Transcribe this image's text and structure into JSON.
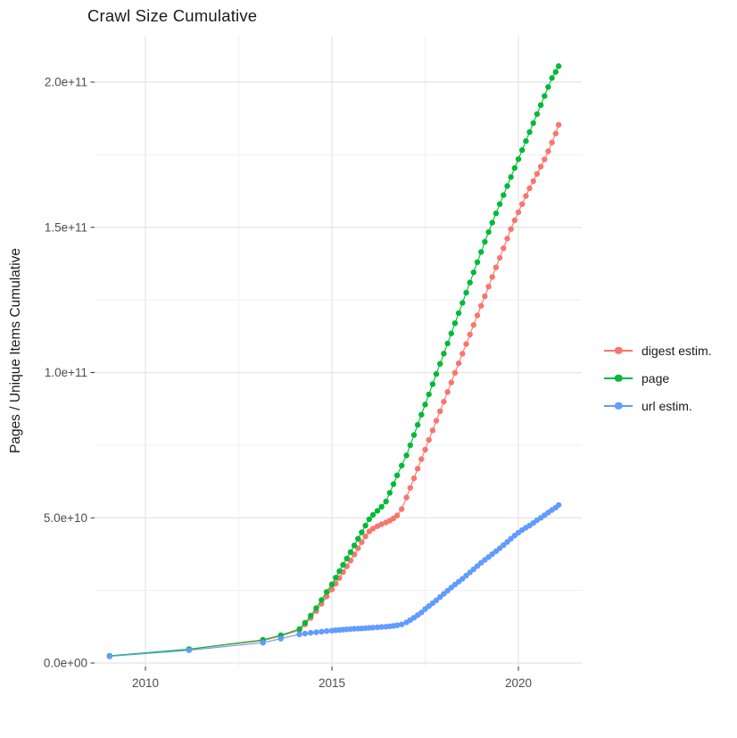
{
  "title": "Crawl Size Cumulative",
  "axes": {
    "y_label": "Pages / Unique Items Cumulative",
    "x_label": "",
    "y_tick_labels": [
      "0.0e+00",
      "5.0e+10",
      "1.0e+11",
      "1.5e+11",
      "2.0e+11"
    ],
    "x_tick_labels": [
      "2010",
      "2015",
      "2020"
    ]
  },
  "legend": {
    "position": "right",
    "items": [
      {
        "id": "digest-estim",
        "label": "digest estim.",
        "color": "#F8766D"
      },
      {
        "id": "page",
        "label": "page",
        "color": "#00BA38"
      },
      {
        "id": "url-estim",
        "label": "url estim.",
        "color": "#619CFF"
      }
    ]
  },
  "colors": {
    "background": "#ffffff",
    "major_gridline": "#e4e4e4",
    "minor_gridline": "#efefef",
    "tick_mark": "#333333",
    "tick_label": "#4d4d4d",
    "title_text": "#1a1a1a",
    "series_digest": "#F8766D",
    "series_page": "#00BA38",
    "series_url": "#619CFF"
  },
  "chart_data": {
    "type": "line",
    "title": "Crawl Size Cumulative",
    "xlabel": "",
    "ylabel": "Pages / Unique Items Cumulative",
    "x_unit": "year (decimal)",
    "value_unit": "items, stored as multiples of 1e9 (value_e9 * 1e9 = plotted value)",
    "xlim": [
      2008.6,
      2021.7
    ],
    "ylim_e9": [
      0,
      217
    ],
    "grid": true,
    "legend_position": "right-middle",
    "x_ticks": [
      {
        "year": 2010,
        "label": "2010"
      },
      {
        "year": 2015,
        "label": "2015"
      },
      {
        "year": 2020,
        "label": "2020"
      }
    ],
    "y_ticks": [
      {
        "value_e9": 0,
        "label": "0.0e+00"
      },
      {
        "value_e9": 50,
        "label": "5.0e+10"
      },
      {
        "value_e9": 100,
        "label": "1.0e+11"
      },
      {
        "value_e9": 150,
        "label": "1.5e+11"
      },
      {
        "value_e9": 200,
        "label": "2.0e+11"
      }
    ],
    "x_minor_years": [
      2012.5,
      2017.5
    ],
    "y_minor_e9": [
      25,
      75,
      125,
      175
    ],
    "series": [
      {
        "id": "digest-estim",
        "name": "digest estim.",
        "color": "#F8766D",
        "points": [
          [
            2009.04,
            2.4
          ],
          [
            2011.17,
            4.7
          ],
          [
            2013.15,
            7.7
          ],
          [
            2013.63,
            9.3
          ],
          [
            2014.13,
            11.3
          ],
          [
            2014.28,
            13.3
          ],
          [
            2014.43,
            15.5
          ],
          [
            2014.58,
            17.9
          ],
          [
            2014.72,
            20.4
          ],
          [
            2014.86,
            22.9
          ],
          [
            2015.0,
            25.3
          ],
          [
            2015.1,
            27.3
          ],
          [
            2015.2,
            29.3
          ],
          [
            2015.3,
            31.3
          ],
          [
            2015.4,
            33.3
          ],
          [
            2015.5,
            35.3
          ],
          [
            2015.6,
            37.4
          ],
          [
            2015.7,
            39.5
          ],
          [
            2015.8,
            41.6
          ],
          [
            2015.9,
            43.6
          ],
          [
            2016.0,
            45.3
          ],
          [
            2016.1,
            46.3
          ],
          [
            2016.22,
            47.1
          ],
          [
            2016.33,
            47.8
          ],
          [
            2016.45,
            48.4
          ],
          [
            2016.55,
            49.0
          ],
          [
            2016.65,
            49.8
          ],
          [
            2016.75,
            50.8
          ],
          [
            2016.87,
            53.0
          ],
          [
            2017.0,
            57.0
          ],
          [
            2017.1,
            60.3
          ],
          [
            2017.2,
            63.6
          ],
          [
            2017.3,
            66.9
          ],
          [
            2017.4,
            70.2
          ],
          [
            2017.5,
            73.5
          ],
          [
            2017.6,
            76.8
          ],
          [
            2017.7,
            80.1
          ],
          [
            2017.8,
            83.4
          ],
          [
            2017.9,
            86.7
          ],
          [
            2018.0,
            90.0
          ],
          [
            2018.1,
            93.3
          ],
          [
            2018.2,
            96.6
          ],
          [
            2018.3,
            99.9
          ],
          [
            2018.4,
            103.2
          ],
          [
            2018.5,
            106.5
          ],
          [
            2018.6,
            109.8
          ],
          [
            2018.7,
            113.1
          ],
          [
            2018.8,
            116.4
          ],
          [
            2018.9,
            119.7
          ],
          [
            2019.0,
            123.0
          ],
          [
            2019.1,
            126.3
          ],
          [
            2019.2,
            129.6
          ],
          [
            2019.3,
            132.9
          ],
          [
            2019.4,
            136.2
          ],
          [
            2019.5,
            139.5
          ],
          [
            2019.6,
            142.8
          ],
          [
            2019.7,
            146.1
          ],
          [
            2019.8,
            149.4
          ],
          [
            2019.9,
            152.4
          ],
          [
            2020.0,
            155.2
          ],
          [
            2020.1,
            158.0
          ],
          [
            2020.2,
            160.8
          ],
          [
            2020.3,
            163.4
          ],
          [
            2020.4,
            165.9
          ],
          [
            2020.5,
            168.4
          ],
          [
            2020.6,
            170.9
          ],
          [
            2020.7,
            173.4
          ],
          [
            2020.8,
            176.2
          ],
          [
            2020.9,
            179.2
          ],
          [
            2021.0,
            182.3
          ],
          [
            2021.08,
            185.3
          ]
        ]
      },
      {
        "id": "page",
        "name": "page",
        "color": "#00BA38",
        "points": [
          [
            2009.04,
            2.5
          ],
          [
            2011.17,
            4.8
          ],
          [
            2013.15,
            8.0
          ],
          [
            2013.63,
            9.6
          ],
          [
            2014.13,
            11.7
          ],
          [
            2014.28,
            13.9
          ],
          [
            2014.43,
            16.3
          ],
          [
            2014.58,
            18.9
          ],
          [
            2014.72,
            21.7
          ],
          [
            2014.86,
            24.5
          ],
          [
            2015.0,
            27.1
          ],
          [
            2015.1,
            29.4
          ],
          [
            2015.2,
            31.6
          ],
          [
            2015.3,
            33.8
          ],
          [
            2015.4,
            36.0
          ],
          [
            2015.5,
            38.2
          ],
          [
            2015.6,
            40.5
          ],
          [
            2015.7,
            42.8
          ],
          [
            2015.8,
            45.0
          ],
          [
            2015.9,
            47.3
          ],
          [
            2016.0,
            49.5
          ],
          [
            2016.1,
            51.0
          ],
          [
            2016.22,
            52.4
          ],
          [
            2016.33,
            53.8
          ],
          [
            2016.45,
            55.6
          ],
          [
            2016.55,
            58.6
          ],
          [
            2016.65,
            61.6
          ],
          [
            2016.75,
            64.6
          ],
          [
            2016.87,
            68.0
          ],
          [
            2017.0,
            71.5
          ],
          [
            2017.1,
            75.0
          ],
          [
            2017.2,
            78.5
          ],
          [
            2017.3,
            82.0
          ],
          [
            2017.4,
            85.5
          ],
          [
            2017.5,
            89.0
          ],
          [
            2017.6,
            92.5
          ],
          [
            2017.7,
            96.0
          ],
          [
            2017.8,
            99.5
          ],
          [
            2017.9,
            103.0
          ],
          [
            2018.0,
            106.5
          ],
          [
            2018.1,
            110.0
          ],
          [
            2018.2,
            113.5
          ],
          [
            2018.3,
            117.0
          ],
          [
            2018.4,
            120.5
          ],
          [
            2018.5,
            124.0
          ],
          [
            2018.6,
            127.5
          ],
          [
            2018.7,
            131.0
          ],
          [
            2018.8,
            134.5
          ],
          [
            2018.9,
            138.0
          ],
          [
            2019.0,
            141.5
          ],
          [
            2019.1,
            145.0
          ],
          [
            2019.2,
            148.4
          ],
          [
            2019.3,
            151.6
          ],
          [
            2019.4,
            154.8
          ],
          [
            2019.5,
            158.0
          ],
          [
            2019.6,
            161.1
          ],
          [
            2019.7,
            164.2
          ],
          [
            2019.8,
            167.3
          ],
          [
            2019.9,
            170.4
          ],
          [
            2020.0,
            173.5
          ],
          [
            2020.1,
            176.6
          ],
          [
            2020.2,
            179.7
          ],
          [
            2020.3,
            182.8
          ],
          [
            2020.4,
            185.9
          ],
          [
            2020.5,
            189.0
          ],
          [
            2020.6,
            192.1
          ],
          [
            2020.7,
            195.2
          ],
          [
            2020.8,
            198.3
          ],
          [
            2020.9,
            201.4
          ],
          [
            2021.0,
            203.5
          ],
          [
            2021.08,
            205.5
          ]
        ]
      },
      {
        "id": "url-estim",
        "name": "url estim.",
        "color": "#619CFF",
        "points": [
          [
            2009.04,
            2.3
          ],
          [
            2011.17,
            4.4
          ],
          [
            2013.15,
            7.0
          ],
          [
            2013.63,
            8.4
          ],
          [
            2014.13,
            9.9
          ],
          [
            2014.28,
            10.15
          ],
          [
            2014.43,
            10.4
          ],
          [
            2014.58,
            10.6
          ],
          [
            2014.72,
            10.8
          ],
          [
            2014.86,
            11.0
          ],
          [
            2015.0,
            11.15
          ],
          [
            2015.1,
            11.3
          ],
          [
            2015.2,
            11.4
          ],
          [
            2015.3,
            11.5
          ],
          [
            2015.4,
            11.6
          ],
          [
            2015.5,
            11.7
          ],
          [
            2015.6,
            11.8
          ],
          [
            2015.7,
            11.87
          ],
          [
            2015.8,
            11.93
          ],
          [
            2015.9,
            12.0
          ],
          [
            2016.0,
            12.1
          ],
          [
            2016.1,
            12.2
          ],
          [
            2016.22,
            12.3
          ],
          [
            2016.33,
            12.4
          ],
          [
            2016.45,
            12.5
          ],
          [
            2016.55,
            12.65
          ],
          [
            2016.65,
            12.8
          ],
          [
            2016.75,
            13.0
          ],
          [
            2016.87,
            13.3
          ],
          [
            2017.0,
            14.0
          ],
          [
            2017.1,
            14.8
          ],
          [
            2017.2,
            15.6
          ],
          [
            2017.3,
            16.5
          ],
          [
            2017.4,
            17.4
          ],
          [
            2017.5,
            18.6
          ],
          [
            2017.6,
            19.6
          ],
          [
            2017.7,
            20.6
          ],
          [
            2017.8,
            21.6
          ],
          [
            2017.9,
            22.7
          ],
          [
            2018.0,
            23.8
          ],
          [
            2018.1,
            24.9
          ],
          [
            2018.2,
            26.0
          ],
          [
            2018.3,
            27.0
          ],
          [
            2018.4,
            28.0
          ],
          [
            2018.5,
            29.0
          ],
          [
            2018.6,
            30.1
          ],
          [
            2018.7,
            31.2
          ],
          [
            2018.8,
            32.3
          ],
          [
            2018.9,
            33.4
          ],
          [
            2019.0,
            34.5
          ],
          [
            2019.1,
            35.5
          ],
          [
            2019.2,
            36.5
          ],
          [
            2019.3,
            37.5
          ],
          [
            2019.4,
            38.5
          ],
          [
            2019.5,
            39.5
          ],
          [
            2019.6,
            40.6
          ],
          [
            2019.7,
            41.7
          ],
          [
            2019.8,
            42.8
          ],
          [
            2019.9,
            43.9
          ],
          [
            2020.0,
            44.9
          ],
          [
            2020.1,
            45.8
          ],
          [
            2020.2,
            46.6
          ],
          [
            2020.3,
            47.3
          ],
          [
            2020.4,
            48.2
          ],
          [
            2020.5,
            49.2
          ],
          [
            2020.6,
            50.0
          ],
          [
            2020.7,
            50.9
          ],
          [
            2020.8,
            51.8
          ],
          [
            2020.9,
            52.7
          ],
          [
            2021.0,
            53.5
          ],
          [
            2021.08,
            54.4
          ]
        ]
      }
    ]
  }
}
